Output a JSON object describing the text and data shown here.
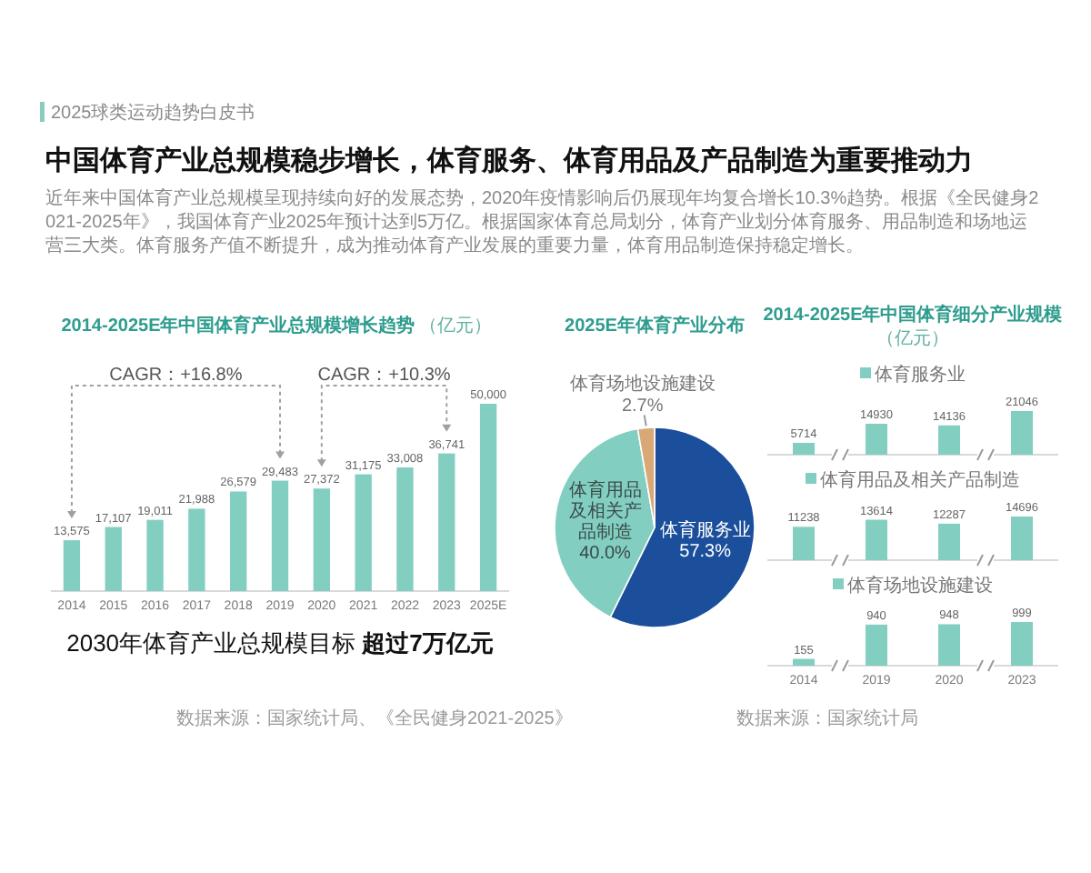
{
  "chart_data": [
    {
      "type": "other",
      "title": "中国体育产业总规模稳步增长，体育服务、体育用品及产品制造为重要推动力",
      "subtitle": "近年来中国体育产业总规模呈现持续向好的发展态势，2020年疫情影响后仍展现年均复合增长10.3%趋势。根据《全民健身2021-2025年》，我国体育产业2025年预计达到5万亿。根据国家体育总局划分，体育产业划分体育服务、用品制造和场地运营三大类。体育服务产值不断提升，成为推动体育产业发展的重要力量，体育用品制造保持稳定增长。",
      "annotations": [
        "2025球类运动趋势白皮书"
      ]
    },
    {
      "type": "bar",
      "title": "2014-2025E年中国体育产业总规模增长趋势",
      "subtitle": "（亿元）",
      "categories": [
        "2014",
        "2015",
        "2016",
        "2017",
        "2018",
        "2019",
        "2020",
        "2021",
        "2022",
        "2023",
        "2025E"
      ],
      "values": [
        13575,
        17107,
        19011,
        21988,
        26579,
        29483,
        27372,
        31175,
        33008,
        36741,
        50000
      ],
      "value_labels": [
        "13,575",
        "17,107",
        "19,011",
        "21,988",
        "26,579",
        "29,483",
        "27,372",
        "31,175",
        "33,008",
        "36,741",
        "50,000"
      ],
      "color": "#82cfc1",
      "tick_labels": "x",
      "annotations": [
        "CAGR：+16.8%",
        "CAGR：+10.3%",
        "2030年体育产业总规模目标 超过7万亿元",
        "数据来源：国家统计局、《全民健身2021-2025》"
      ]
    },
    {
      "type": "pie",
      "title": "2025E年体育产业分布",
      "categories": [
        "体育服务业",
        "体育用品及相关产品制造",
        "体育场地设施建设"
      ],
      "values": [
        57.3,
        40.0,
        2.7
      ],
      "value_labels": [
        "57.3%",
        "40.0%",
        "2.7%"
      ],
      "colors": [
        "#1b4f9c",
        "#82cfc1",
        "#d8a877"
      ]
    },
    {
      "type": "bar",
      "title": "2014-2025E年中国体育细分产业规模",
      "subtitle": "（亿元）",
      "categories": [
        "2014",
        "2019",
        "2020",
        "2023"
      ],
      "series": [
        {
          "name": "体育服务业",
          "color": "#82cfc1",
          "values": [
            5714,
            14930,
            14136,
            21046
          ]
        }
      ],
      "data_labels": true,
      "legend": "top",
      "tick_labels": false
    },
    {
      "type": "bar",
      "categories": [
        "2014",
        "2019",
        "2020",
        "2023"
      ],
      "series": [
        {
          "name": "体育用品及相关产品制造",
          "color": "#82cfc1",
          "values": [
            11238,
            13614,
            12287,
            14696
          ]
        }
      ],
      "data_labels": true,
      "legend": "top",
      "tick_labels": false
    },
    {
      "type": "bar",
      "categories": [
        "2014",
        "2019",
        "2020",
        "2023"
      ],
      "series": [
        {
          "name": "体育场地设施建设",
          "color": "#82cfc1",
          "values": [
            155,
            940,
            948,
            999
          ]
        }
      ],
      "data_labels": true,
      "legend": "top",
      "tick_labels": "x",
      "annotations": [
        "数据来源：国家统计局"
      ]
    }
  ]
}
